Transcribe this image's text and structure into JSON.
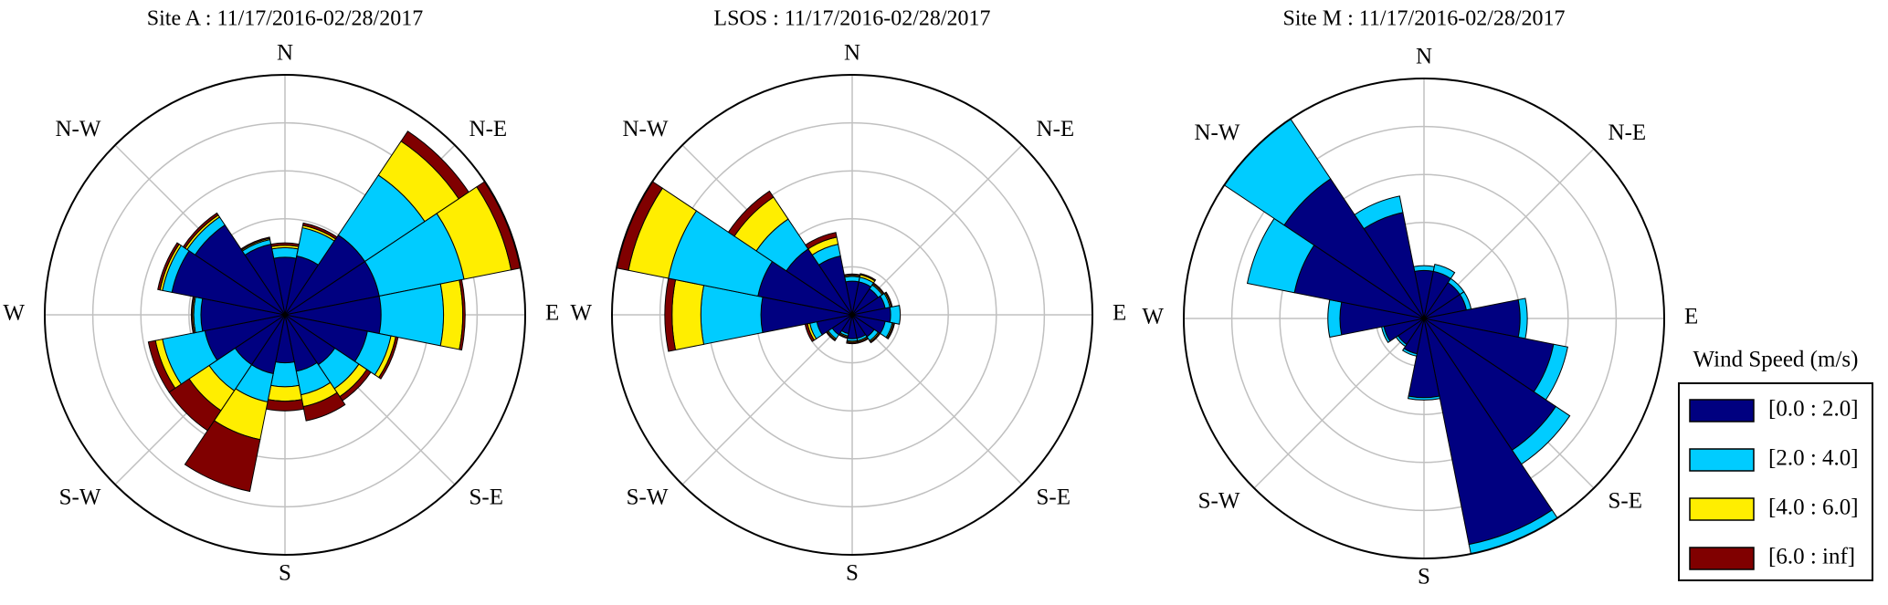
{
  "chart_data": [
    {
      "type": "windrose",
      "title": "Site A : 11/17/2016-02/28/2017",
      "theta": [
        0,
        22.5,
        45,
        67.5,
        90,
        112.5,
        135,
        157.5,
        180,
        202.5,
        225,
        247.5,
        270,
        292.5,
        315,
        337.5
      ],
      "series": [
        {
          "color": "#000080",
          "values": [
            2.4,
            2.5,
            4.0,
            4.0,
            4.0,
            3.5,
            2.5,
            2.4,
            2.0,
            2.5,
            2.5,
            3.4,
            3.5,
            4.8,
            4.5,
            3.0
          ]
        },
        {
          "color": "#00ccff",
          "values": [
            0.4,
            1.2,
            3.0,
            3.6,
            2.6,
            1.0,
            1.2,
            1.0,
            1.0,
            1.2,
            1.3,
            1.8,
            0.3,
            0.4,
            0.4,
            0.2
          ]
        },
        {
          "color": "#ffee00",
          "values": [
            0.1,
            0.1,
            1.7,
            2.0,
            0.8,
            0.2,
            0.4,
            0.5,
            0.6,
            1.6,
            1.0,
            0.3,
            0.05,
            0.1,
            0.1,
            0.05
          ]
        },
        {
          "color": "#800000",
          "values": [
            0.1,
            0.1,
            0.5,
            0.4,
            0.1,
            0.1,
            0.2,
            0.6,
            0.4,
            2.2,
            1.0,
            0.3,
            0.05,
            0.1,
            0.1,
            0.05
          ]
        }
      ],
      "rlim": [
        0,
        10
      ],
      "rticks": [
        2,
        4,
        6,
        8,
        10
      ],
      "thetaticks": [
        {
          "value": 0,
          "label": "N"
        },
        {
          "value": 45,
          "label": "N-E"
        },
        {
          "value": 90,
          "label": "E"
        },
        {
          "value": 135,
          "label": "S-E"
        },
        {
          "value": 180,
          "label": "S"
        },
        {
          "value": 225,
          "label": "S-W"
        },
        {
          "value": 270,
          "label": "W"
        },
        {
          "value": 315,
          "label": "N-W"
        }
      ]
    },
    {
      "type": "windrose",
      "title": "LSOS : 11/17/2016-02/28/2017",
      "theta": [
        0,
        22.5,
        45,
        67.5,
        90,
        112.5,
        135,
        157.5,
        180,
        202.5,
        225,
        247.5,
        270,
        292.5,
        315,
        337.5
      ],
      "series": [
        {
          "color": "#000080",
          "values": [
            1.4,
            1.4,
            1.3,
            1.4,
            1.6,
            1.4,
            1.1,
            1.0,
            1.0,
            0.8,
            1.0,
            1.5,
            3.8,
            4.0,
            3.3,
            2.5
          ]
        },
        {
          "color": "#00ccff",
          "values": [
            0.2,
            0.2,
            0.2,
            0.2,
            0.4,
            0.3,
            0.2,
            0.1,
            0.1,
            0.1,
            0.2,
            0.3,
            2.5,
            3.8,
            1.5,
            0.5
          ]
        },
        {
          "color": "#ffee00",
          "values": [
            0.05,
            0.1,
            0.05,
            0.05,
            0,
            0.05,
            0.05,
            0.05,
            0.05,
            0.05,
            0.05,
            0.1,
            1.2,
            1.7,
            1.1,
            0.3
          ]
        },
        {
          "color": "#800000",
          "values": [
            0.05,
            0.05,
            0.05,
            0.05,
            0,
            0.05,
            0.05,
            0.05,
            0.05,
            0.05,
            0.05,
            0.1,
            0.3,
            0.5,
            0.3,
            0.2
          ]
        }
      ],
      "rlim": [
        0,
        10
      ],
      "rticks": [
        2,
        4,
        6,
        8,
        10
      ],
      "thetaticks": [
        {
          "value": 0,
          "label": "N"
        },
        {
          "value": 45,
          "label": "N-E"
        },
        {
          "value": 90,
          "label": "E"
        },
        {
          "value": 135,
          "label": "S-E"
        },
        {
          "value": 180,
          "label": "S"
        },
        {
          "value": 225,
          "label": "S-W"
        },
        {
          "value": 270,
          "label": "W"
        },
        {
          "value": 315,
          "label": "N-W"
        }
      ]
    },
    {
      "type": "windrose",
      "title": "Site M : 11/17/2016-02/28/2017",
      "theta": [
        0,
        22.5,
        45,
        67.5,
        90,
        112.5,
        135,
        157.5,
        180,
        202.5,
        225,
        247.5,
        270,
        292.5,
        315,
        337.5
      ],
      "series": [
        {
          "name": "[0.0 : 2.0]",
          "color": "#000080",
          "values": [
            2.0,
            2.0,
            1.8,
            1.8,
            4.0,
            5.5,
            6.6,
            9.6,
            3.3,
            1.5,
            1.3,
            1.7,
            3.5,
            5.5,
            7.0,
            4.5
          ]
        },
        {
          "name": "[2.0 : 4.0]",
          "color": "#00ccff",
          "values": [
            0.2,
            0.3,
            0.2,
            0.2,
            0.3,
            0.6,
            0.7,
            0.4,
            0.1,
            0.1,
            0.1,
            0.1,
            0.5,
            2.0,
            3.0,
            0.7
          ]
        },
        {
          "name": "[4.0 : 6.0]",
          "color": "#ffee00",
          "values": [
            0,
            0,
            0,
            0,
            0,
            0,
            0,
            0,
            0,
            0,
            0,
            0,
            0,
            0,
            0,
            0
          ]
        },
        {
          "name": "[6.0 : inf]",
          "color": "#800000",
          "values": [
            0,
            0,
            0,
            0,
            0,
            0,
            0,
            0,
            0,
            0,
            0,
            0,
            0,
            0,
            0,
            0
          ]
        }
      ],
      "legend_title": "Wind Speed (m/s)",
      "rlim": [
        0,
        10
      ],
      "rticks": [
        2,
        4,
        6,
        8,
        10
      ],
      "thetaticks": [
        {
          "value": 0,
          "label": "N"
        },
        {
          "value": 45,
          "label": "N-E"
        },
        {
          "value": 90,
          "label": "E"
        },
        {
          "value": 135,
          "label": "S-E"
        },
        {
          "value": 180,
          "label": "S"
        },
        {
          "value": 225,
          "label": "S-W"
        },
        {
          "value": 270,
          "label": "W"
        },
        {
          "value": 315,
          "label": "N-W"
        }
      ]
    }
  ]
}
